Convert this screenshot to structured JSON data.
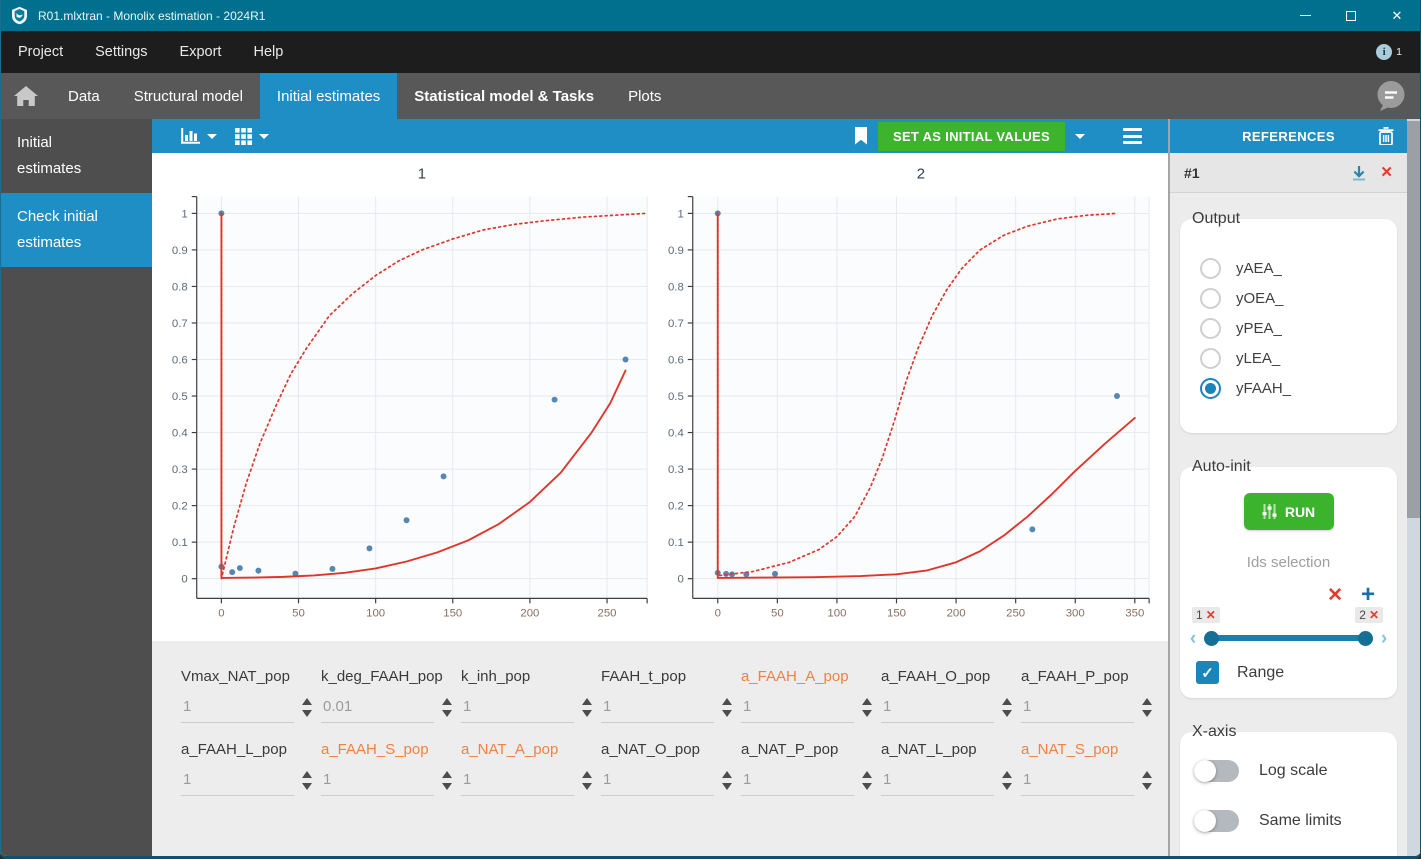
{
  "window": {
    "title": "R01.mlxtran - Monolix estimation - 2024R1"
  },
  "menu": {
    "items": [
      "Project",
      "Settings",
      "Export",
      "Help"
    ],
    "info_badge": "1"
  },
  "tab_bar": {
    "tabs": [
      {
        "label": "Data",
        "active": false,
        "bold": false
      },
      {
        "label": "Structural model",
        "active": false,
        "bold": false
      },
      {
        "label": "Initial estimates",
        "active": true,
        "bold": false
      },
      {
        "label": "Statistical model & Tasks",
        "active": false,
        "bold": true
      },
      {
        "label": "Plots",
        "active": false,
        "bold": false
      }
    ]
  },
  "sidebar": {
    "items": [
      {
        "label": "Initial estimates",
        "active": false
      },
      {
        "label": "Check initial estimates",
        "active": true
      }
    ]
  },
  "toolbar": {
    "chart_type_icon": "bar-chart-icon",
    "layout_icon": "grid-layout-icon",
    "bookmark_icon": "bookmark-icon",
    "set_initial_label": "SET AS INITIAL VALUES",
    "menu_icon": "hamburger-icon"
  },
  "parameters": {
    "rows": [
      [
        {
          "name": "Vmax_NAT_pop",
          "value": "1",
          "highlighted": false
        },
        {
          "name": "k_deg_FAAH_pop",
          "value": "0.01",
          "highlighted": false
        },
        {
          "name": "k_inh_pop",
          "value": "1",
          "highlighted": false
        },
        {
          "name": "FAAH_t_pop",
          "value": "1",
          "highlighted": false
        },
        {
          "name": "a_FAAH_A_pop",
          "value": "1",
          "highlighted": true
        },
        {
          "name": "a_FAAH_O_pop",
          "value": "1",
          "highlighted": false
        },
        {
          "name": "a_FAAH_P_pop",
          "value": "1",
          "highlighted": false
        }
      ],
      [
        {
          "name": "a_FAAH_L_pop",
          "value": "1",
          "highlighted": false
        },
        {
          "name": "a_FAAH_S_pop",
          "value": "1",
          "highlighted": true
        },
        {
          "name": "a_NAT_A_pop",
          "value": "1",
          "highlighted": true
        },
        {
          "name": "a_NAT_O_pop",
          "value": "1",
          "highlighted": false
        },
        {
          "name": "a_NAT_P_pop",
          "value": "1",
          "highlighted": false
        },
        {
          "name": "a_NAT_L_pop",
          "value": "1",
          "highlighted": false
        },
        {
          "name": "a_NAT_S_pop",
          "value": "1",
          "highlighted": true
        }
      ]
    ]
  },
  "references_panel": {
    "title": "REFERENCES",
    "reference_id": "#1",
    "output": {
      "label": "Output",
      "options": [
        {
          "label": "yAEA_",
          "selected": false
        },
        {
          "label": "yOEA_",
          "selected": false
        },
        {
          "label": "yPEA_",
          "selected": false
        },
        {
          "label": "yLEA_",
          "selected": false
        },
        {
          "label": "yFAAH_",
          "selected": true
        }
      ]
    },
    "auto_init": {
      "label": "Auto-init",
      "run_label": "RUN",
      "ids_selection_label": "Ids selection",
      "slider": {
        "min_label": "1",
        "max_label": "2",
        "min": 1,
        "max": 2
      },
      "range_label": "Range",
      "range_checked": true
    },
    "x_axis": {
      "label": "X-axis",
      "toggles": [
        {
          "label": "Log scale",
          "on": false
        },
        {
          "label": "Same limits",
          "on": false
        }
      ]
    }
  },
  "colors": {
    "titlebar_teal": "#00708f",
    "accent_blue": "#1f8ec5",
    "green_button": "#3eb32d",
    "highlight_orange": "#f2813f",
    "curve_red": "#e0352b",
    "point_blue": "#3d76a6",
    "error_red": "#e23b30"
  },
  "chart_data": [
    {
      "type": "scatter",
      "title": "1",
      "xlim": [
        -16,
        276
      ],
      "ylim": [
        -0.054,
        1.046
      ],
      "x_ticks": [
        0,
        50,
        100,
        150,
        200,
        250
      ],
      "y_ticks": [
        0,
        0.1,
        0.2,
        0.3,
        0.4,
        0.5,
        0.6,
        0.7,
        0.8,
        0.9,
        1
      ],
      "grid": true,
      "series": [
        {
          "name": "observed-data",
          "type": "scatter",
          "color": "#3d76a6",
          "x": [
            0,
            0,
            7,
            12,
            24,
            48,
            72,
            96,
            120,
            144,
            216,
            262
          ],
          "y": [
            1,
            0.033,
            0.018,
            0.029,
            0.022,
            0.014,
            0.027,
            0.083,
            0.16,
            0.28,
            0.49,
            0.6
          ]
        },
        {
          "name": "model-prediction",
          "type": "line",
          "style": "solid",
          "color": "#e0352b",
          "x": [
            0,
            0,
            20,
            40,
            60,
            80,
            100,
            120,
            140,
            160,
            180,
            200,
            220,
            240,
            252,
            262
          ],
          "y": [
            1,
            0.002,
            0.003,
            0.005,
            0.009,
            0.016,
            0.028,
            0.047,
            0.072,
            0.105,
            0.15,
            0.21,
            0.29,
            0.4,
            0.48,
            0.57
          ]
        },
        {
          "name": "reference-curve",
          "type": "line",
          "style": "dotted",
          "color": "#e0352b",
          "x": [
            0,
            0,
            8,
            16,
            25,
            35,
            45,
            55,
            70,
            85,
            100,
            115,
            130,
            150,
            170,
            190,
            210,
            235,
            255,
            275
          ],
          "y": [
            1,
            0,
            0.14,
            0.26,
            0.37,
            0.47,
            0.56,
            0.63,
            0.72,
            0.78,
            0.83,
            0.87,
            0.9,
            0.93,
            0.955,
            0.97,
            0.98,
            0.99,
            0.995,
            1
          ]
        }
      ]
    },
    {
      "type": "scatter",
      "title": "2",
      "xlim": [
        -21,
        362
      ],
      "ylim": [
        -0.054,
        1.046
      ],
      "x_ticks": [
        0,
        50,
        100,
        150,
        200,
        250,
        300,
        350
      ],
      "y_ticks": [
        0,
        0.1,
        0.2,
        0.3,
        0.4,
        0.5,
        0.6,
        0.7,
        0.8,
        0.9,
        1
      ],
      "grid": true,
      "series": [
        {
          "name": "observed-data",
          "type": "scatter",
          "color": "#3d76a6",
          "x": [
            0,
            0,
            7,
            12,
            24,
            48,
            264,
            335
          ],
          "y": [
            1,
            0.016,
            0.013,
            0.012,
            0.012,
            0.013,
            0.135,
            0.5
          ]
        },
        {
          "name": "model-prediction",
          "type": "line",
          "style": "solid",
          "color": "#e0352b",
          "x": [
            0,
            0,
            40,
            80,
            120,
            150,
            175,
            200,
            220,
            240,
            260,
            280,
            300,
            325,
            350
          ],
          "y": [
            1,
            0.002,
            0.003,
            0.004,
            0.007,
            0.012,
            0.022,
            0.045,
            0.075,
            0.118,
            0.17,
            0.23,
            0.295,
            0.37,
            0.44
          ]
        },
        {
          "name": "reference-curve",
          "type": "line",
          "style": "dotted",
          "color": "#e0352b",
          "x": [
            0,
            0,
            30,
            60,
            85,
            100,
            115,
            128,
            138,
            148,
            158,
            168,
            180,
            192,
            205,
            220,
            240,
            260,
            285,
            310,
            335
          ],
          "y": [
            1,
            0.008,
            0.02,
            0.045,
            0.08,
            0.115,
            0.17,
            0.25,
            0.33,
            0.43,
            0.54,
            0.63,
            0.72,
            0.79,
            0.85,
            0.9,
            0.94,
            0.965,
            0.985,
            0.995,
            1
          ]
        }
      ]
    }
  ]
}
